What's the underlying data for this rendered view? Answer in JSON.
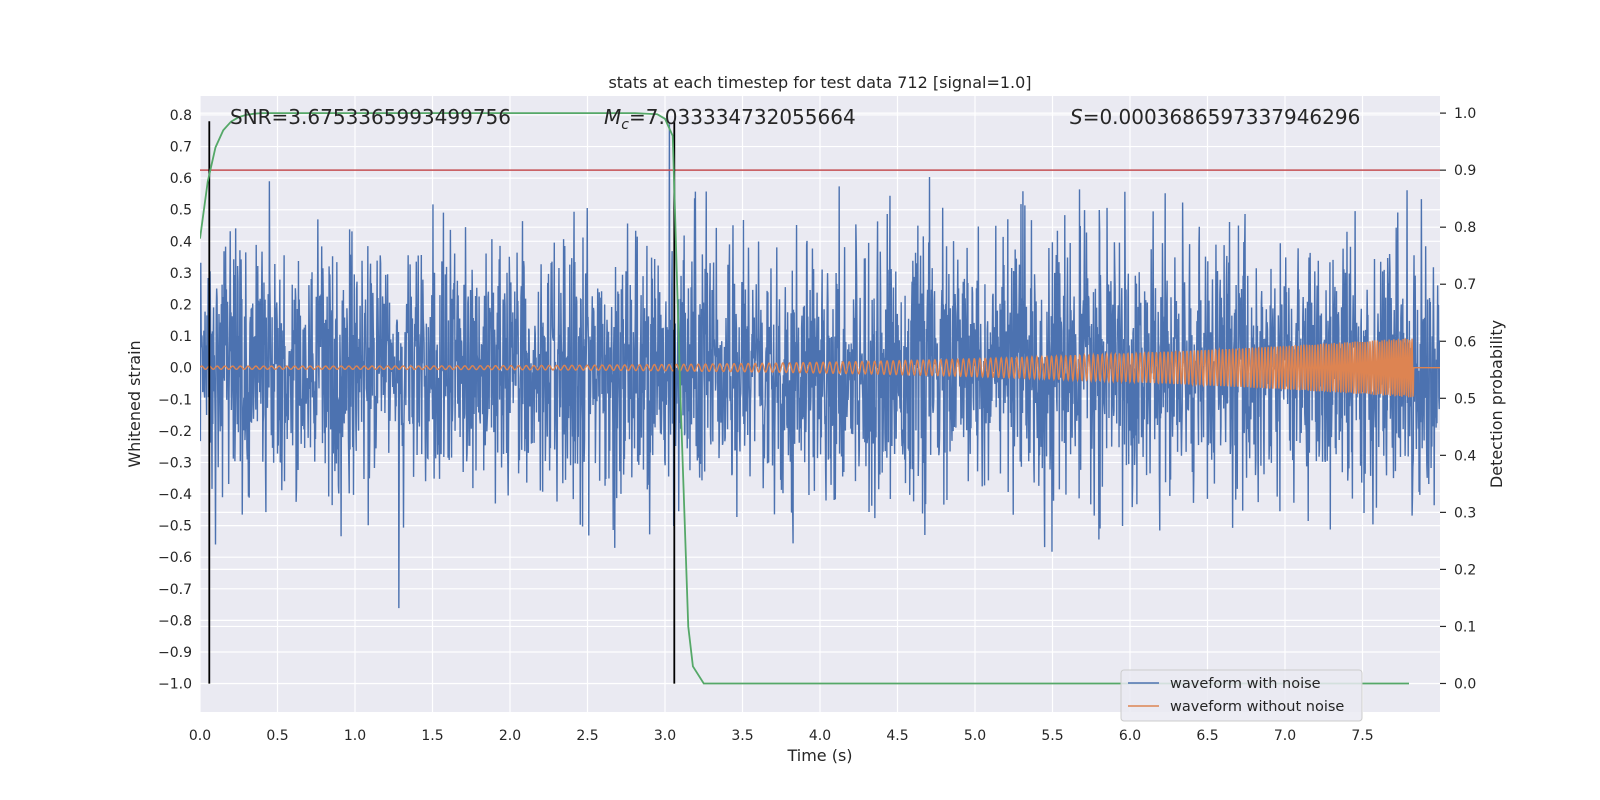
{
  "chart_data": {
    "type": "line",
    "title": "stats at each timestep for test data 712 [signal=1.0]",
    "xlabel": "Time (s)",
    "ylabel": "Whitened strain",
    "ylabel_right": "Detection probability",
    "xlim": [
      0.0,
      8.0
    ],
    "ylim": [
      -1.09,
      0.86
    ],
    "ylim_right": [
      -0.05,
      1.03
    ],
    "xticks": [
      0.0,
      0.5,
      1.0,
      1.5,
      2.0,
      2.5,
      3.0,
      3.5,
      4.0,
      4.5,
      5.0,
      5.5,
      6.0,
      6.5,
      7.0,
      7.5
    ],
    "xtick_labels": [
      "0.0",
      "0.5",
      "1.0",
      "1.5",
      "2.0",
      "2.5",
      "3.0",
      "3.5",
      "4.0",
      "4.5",
      "5.0",
      "5.5",
      "6.0",
      "6.5",
      "7.0",
      "7.5"
    ],
    "yticks": [
      0.8,
      0.7,
      0.6,
      0.5,
      0.4,
      0.3,
      0.2,
      0.1,
      0.0,
      -0.1,
      -0.2,
      -0.3,
      -0.4,
      -0.5,
      -0.6,
      -0.7,
      -0.8,
      -0.9,
      -1.0
    ],
    "ytick_labels": [
      "0.8",
      "0.7",
      "0.6",
      "0.5",
      "0.4",
      "0.3",
      "0.2",
      "0.1",
      "0.0",
      "−0.1",
      "−0.2",
      "−0.3",
      "−0.4",
      "−0.5",
      "−0.6",
      "−0.7",
      "−0.8",
      "−0.9",
      "−1.0"
    ],
    "yticks_right": [
      1.0,
      0.9,
      0.8,
      0.7,
      0.6,
      0.5,
      0.4,
      0.3,
      0.2,
      0.1,
      0.0
    ],
    "ytick_labels_right": [
      "1.0",
      "0.9",
      "0.8",
      "0.7",
      "0.6",
      "0.5",
      "0.4",
      "0.3",
      "0.2",
      "0.1",
      "0.0"
    ],
    "annotations": {
      "snr": "SNR=3.6753365993499756",
      "mc_symbol": "M",
      "mc_sub": "c",
      "mc_value": "=7.033334732055664",
      "s_symbol": "S",
      "s_value": "=0.0003686597337946296"
    },
    "threshold": {
      "value": 0.9,
      "axis": "right"
    },
    "vlines": [
      {
        "x": 0.06,
        "ymin": -1.0,
        "ymax": 0.78
      },
      {
        "x": 3.06,
        "ymin": -1.0,
        "ymax": 0.78
      }
    ],
    "series": [
      {
        "name": "waveform with noise",
        "color": "#4c72b0",
        "kind": "noise",
        "sigma": 0.2,
        "duration": 8.0
      },
      {
        "name": "waveform without noise",
        "color": "#dd8452",
        "kind": "chirp",
        "f0": 20,
        "f1": 70,
        "t_end": 7.83,
        "amp_start": 0.005,
        "amp_end": 0.095,
        "duration": 8.0
      },
      {
        "name": "detection probability",
        "color": "#55a868",
        "axis": "right",
        "x": [
          0.0,
          0.05,
          0.1,
          0.15,
          0.2,
          0.25,
          0.3,
          0.35,
          0.4,
          0.5,
          1.0,
          1.5,
          2.0,
          2.5,
          2.8,
          2.95,
          3.0,
          3.05,
          3.1,
          3.15,
          3.18,
          3.25,
          3.5,
          4.0,
          5.0,
          6.0,
          7.0,
          7.8
        ],
        "y": [
          0.78,
          0.88,
          0.94,
          0.97,
          0.985,
          0.993,
          0.997,
          0.999,
          1.0,
          1.0,
          1.0,
          1.0,
          1.0,
          1.0,
          1.0,
          0.998,
          0.99,
          0.96,
          0.5,
          0.1,
          0.03,
          0.0,
          0.0,
          0.0,
          0.0,
          0.0,
          0.0,
          0.0
        ]
      }
    ],
    "legend": {
      "location": "lower right",
      "entries": [
        {
          "label": "waveform with noise",
          "color": "#4c72b0"
        },
        {
          "label": "waveform without noise",
          "color": "#dd8452"
        }
      ]
    },
    "colors": {
      "axes_bg": "#eaeaf2",
      "grid": "#ffffff",
      "threshold": "#c44e52",
      "vline": "#000000"
    }
  }
}
